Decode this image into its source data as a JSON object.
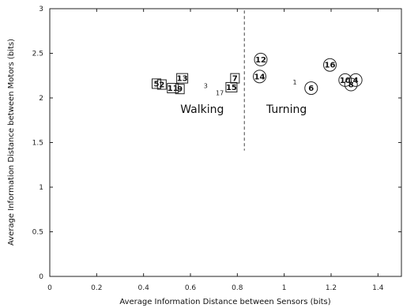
{
  "chart_data": {
    "type": "scatter",
    "xlabel": "Average Information Distance between Sensors (bits)",
    "ylabel": "Average Information Distance between Motors (bits)",
    "xlim": [
      0,
      1.5
    ],
    "ylim": [
      0,
      3
    ],
    "xticks": [
      "0",
      "0.2",
      "0.4",
      "0.6",
      "0.8",
      "1",
      "1.2",
      "1.4"
    ],
    "xtick_values": [
      0,
      0.2,
      0.4,
      0.6,
      0.8,
      1.0,
      1.2,
      1.4
    ],
    "yticks": [
      "0",
      "0.5",
      "1",
      "1.5",
      "2",
      "2.5",
      "3"
    ],
    "ytick_values": [
      0,
      0.5,
      1.0,
      1.5,
      2.0,
      2.5,
      3.0
    ],
    "divider": {
      "x": 0.83,
      "y_from": 1.41,
      "y_to": 2.98,
      "style": "dashed"
    },
    "cluster_labels": [
      {
        "text": "Walking",
        "x": 0.65,
        "y": 1.83
      },
      {
        "text": "Turning",
        "x": 1.01,
        "y": 1.83
      }
    ],
    "points": [
      {
        "label": "5",
        "x": 0.455,
        "y": 2.16,
        "marker": "square"
      },
      {
        "label": "2",
        "x": 0.478,
        "y": 2.15,
        "marker": "square"
      },
      {
        "label": "11",
        "x": 0.525,
        "y": 2.11,
        "marker": "square"
      },
      {
        "label": "9",
        "x": 0.555,
        "y": 2.1,
        "marker": "square"
      },
      {
        "label": "13",
        "x": 0.565,
        "y": 2.22,
        "marker": "square"
      },
      {
        "label": "3",
        "x": 0.665,
        "y": 2.14,
        "marker": "none"
      },
      {
        "label": "17",
        "x": 0.725,
        "y": 2.06,
        "marker": "none"
      },
      {
        "label": "15",
        "x": 0.775,
        "y": 2.12,
        "marker": "square"
      },
      {
        "label": "7",
        "x": 0.79,
        "y": 2.22,
        "marker": "square"
      },
      {
        "label": "12",
        "x": 0.9,
        "y": 2.43,
        "marker": "circle"
      },
      {
        "label": "14",
        "x": 0.895,
        "y": 2.24,
        "marker": "circle"
      },
      {
        "label": "1",
        "x": 1.045,
        "y": 2.18,
        "marker": "none"
      },
      {
        "label": "6",
        "x": 1.115,
        "y": 2.11,
        "marker": "circle"
      },
      {
        "label": "16",
        "x": 1.195,
        "y": 2.37,
        "marker": "circle"
      },
      {
        "label": "10",
        "x": 1.26,
        "y": 2.2,
        "marker": "circle"
      },
      {
        "label": "4",
        "x": 1.305,
        "y": 2.2,
        "marker": "circle"
      },
      {
        "label": "8",
        "x": 1.285,
        "y": 2.15,
        "marker": "circle"
      }
    ]
  }
}
